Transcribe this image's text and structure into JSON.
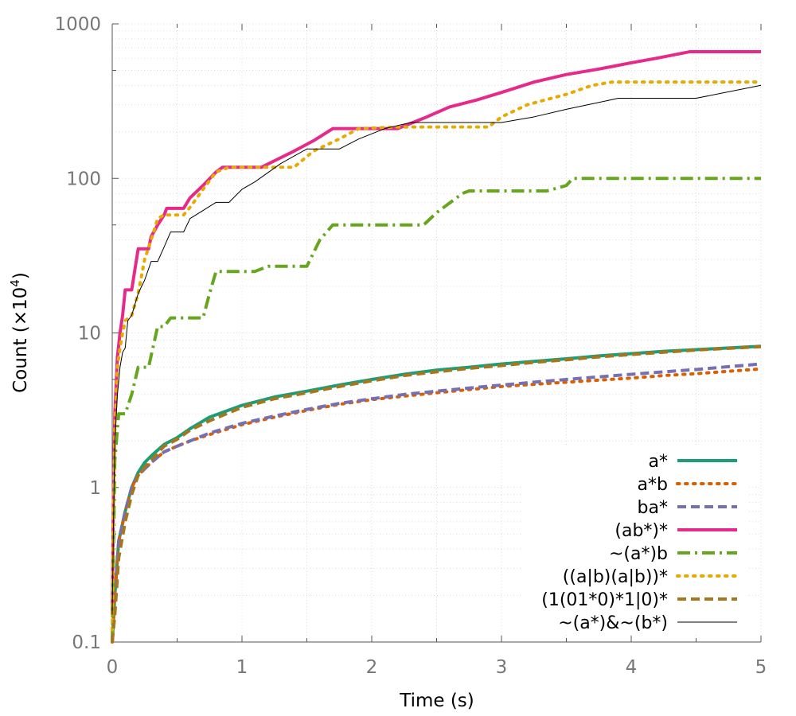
{
  "chart_data": {
    "type": "line",
    "xlabel": "Time (s)",
    "ylabel_main": "Count (×10",
    "ylabel_exp": "4",
    "ylabel_close": ")",
    "xlim": [
      0,
      5
    ],
    "ylim": [
      0.1,
      1000
    ],
    "yscale": "log",
    "grid": true,
    "legend_placement": "bottom-right",
    "x_ticks": [
      {
        "value": 0,
        "label": "0"
      },
      {
        "value": 1,
        "label": "1"
      },
      {
        "value": 2,
        "label": "2"
      },
      {
        "value": 3,
        "label": "3"
      },
      {
        "value": 4,
        "label": "4"
      },
      {
        "value": 5,
        "label": "5"
      }
    ],
    "y_ticks": [
      {
        "value": 0.1,
        "label": "0.1"
      },
      {
        "value": 1,
        "label": "1"
      },
      {
        "value": 10,
        "label": "10"
      },
      {
        "value": 100,
        "label": "100"
      },
      {
        "value": 1000,
        "label": "1000"
      }
    ],
    "series": [
      {
        "name": "a*",
        "color": "#1b9e77",
        "style": "solid",
        "width": 4,
        "points": [
          [
            0,
            0.1
          ],
          [
            0.02,
            0.2
          ],
          [
            0.05,
            0.45
          ],
          [
            0.1,
            0.7
          ],
          [
            0.15,
            1.0
          ],
          [
            0.2,
            1.25
          ],
          [
            0.25,
            1.45
          ],
          [
            0.3,
            1.6
          ],
          [
            0.4,
            1.9
          ],
          [
            0.5,
            2.1
          ],
          [
            0.6,
            2.4
          ],
          [
            0.75,
            2.85
          ],
          [
            1.0,
            3.4
          ],
          [
            1.25,
            3.85
          ],
          [
            1.5,
            4.2
          ],
          [
            1.75,
            4.6
          ],
          [
            2.0,
            5.0
          ],
          [
            2.25,
            5.4
          ],
          [
            2.5,
            5.75
          ],
          [
            2.75,
            6.0
          ],
          [
            3.0,
            6.3
          ],
          [
            3.25,
            6.55
          ],
          [
            3.5,
            6.8
          ],
          [
            3.75,
            7.1
          ],
          [
            4.0,
            7.35
          ],
          [
            4.25,
            7.6
          ],
          [
            4.5,
            7.8
          ],
          [
            4.75,
            8.0
          ],
          [
            5.0,
            8.2
          ]
        ]
      },
      {
        "name": "a*b",
        "color": "#d95f02",
        "style": "dotted",
        "width": 4,
        "points": [
          [
            0,
            0.1
          ],
          [
            0.02,
            0.2
          ],
          [
            0.05,
            0.45
          ],
          [
            0.1,
            0.7
          ],
          [
            0.15,
            1.0
          ],
          [
            0.2,
            1.2
          ],
          [
            0.3,
            1.45
          ],
          [
            0.4,
            1.7
          ],
          [
            0.5,
            1.85
          ],
          [
            0.6,
            2.0
          ],
          [
            0.75,
            2.2
          ],
          [
            1.0,
            2.55
          ],
          [
            1.25,
            2.85
          ],
          [
            1.5,
            3.15
          ],
          [
            1.75,
            3.45
          ],
          [
            2.0,
            3.7
          ],
          [
            2.25,
            3.9
          ],
          [
            2.5,
            4.1
          ],
          [
            2.75,
            4.3
          ],
          [
            3.0,
            4.5
          ],
          [
            3.25,
            4.65
          ],
          [
            3.5,
            4.8
          ],
          [
            3.75,
            4.95
          ],
          [
            4.0,
            5.1
          ],
          [
            4.25,
            5.3
          ],
          [
            4.5,
            5.45
          ],
          [
            4.75,
            5.65
          ],
          [
            5.0,
            5.85
          ]
        ]
      },
      {
        "name": "ba*",
        "color": "#7570b3",
        "style": "dashed",
        "width": 4,
        "points": [
          [
            0,
            0.1
          ],
          [
            0.02,
            0.2
          ],
          [
            0.05,
            0.45
          ],
          [
            0.1,
            0.7
          ],
          [
            0.15,
            1.0
          ],
          [
            0.2,
            1.2
          ],
          [
            0.3,
            1.45
          ],
          [
            0.4,
            1.7
          ],
          [
            0.5,
            1.85
          ],
          [
            0.6,
            2.0
          ],
          [
            0.75,
            2.25
          ],
          [
            1.0,
            2.6
          ],
          [
            1.25,
            2.9
          ],
          [
            1.5,
            3.2
          ],
          [
            1.75,
            3.5
          ],
          [
            2.0,
            3.75
          ],
          [
            2.25,
            4.0
          ],
          [
            2.5,
            4.2
          ],
          [
            2.75,
            4.4
          ],
          [
            3.0,
            4.6
          ],
          [
            3.25,
            4.8
          ],
          [
            3.5,
            5.0
          ],
          [
            3.75,
            5.2
          ],
          [
            4.0,
            5.4
          ],
          [
            4.25,
            5.6
          ],
          [
            4.5,
            5.8
          ],
          [
            4.75,
            6.05
          ],
          [
            5.0,
            6.3
          ]
        ]
      },
      {
        "name": "(ab*)*",
        "color": "#e7298a",
        "style": "solid",
        "width": 4,
        "points": [
          [
            0,
            0.15
          ],
          [
            0.01,
            1.0
          ],
          [
            0.02,
            3.0
          ],
          [
            0.04,
            7.0
          ],
          [
            0.06,
            10
          ],
          [
            0.08,
            13
          ],
          [
            0.1,
            19
          ],
          [
            0.15,
            19
          ],
          [
            0.2,
            35
          ],
          [
            0.28,
            35
          ],
          [
            0.3,
            42
          ],
          [
            0.35,
            50
          ],
          [
            0.4,
            58
          ],
          [
            0.42,
            64
          ],
          [
            0.55,
            64
          ],
          [
            0.6,
            75
          ],
          [
            0.7,
            90
          ],
          [
            0.8,
            110
          ],
          [
            0.85,
            118
          ],
          [
            1.0,
            118
          ],
          [
            1.15,
            118
          ],
          [
            1.25,
            130
          ],
          [
            1.4,
            150
          ],
          [
            1.55,
            175
          ],
          [
            1.7,
            210
          ],
          [
            2.0,
            210
          ],
          [
            2.2,
            210
          ],
          [
            2.4,
            245
          ],
          [
            2.6,
            290
          ],
          [
            2.8,
            320
          ],
          [
            3.0,
            360
          ],
          [
            3.25,
            420
          ],
          [
            3.5,
            470
          ],
          [
            3.75,
            510
          ],
          [
            4.0,
            560
          ],
          [
            4.2,
            600
          ],
          [
            4.45,
            660
          ],
          [
            5.0,
            660
          ]
        ]
      },
      {
        "name": "~(a*)b",
        "color": "#66a61e",
        "style": "dashdot",
        "width": 4,
        "points": [
          [
            0,
            0.1
          ],
          [
            0.02,
            1.5
          ],
          [
            0.05,
            3.0
          ],
          [
            0.1,
            3.0
          ],
          [
            0.15,
            4.0
          ],
          [
            0.2,
            6.0
          ],
          [
            0.28,
            6.0
          ],
          [
            0.35,
            11
          ],
          [
            0.4,
            11
          ],
          [
            0.45,
            12.5
          ],
          [
            0.7,
            12.5
          ],
          [
            0.75,
            18
          ],
          [
            0.8,
            25
          ],
          [
            1.1,
            25
          ],
          [
            1.2,
            27
          ],
          [
            1.5,
            27
          ],
          [
            1.6,
            40
          ],
          [
            1.7,
            50
          ],
          [
            2.4,
            50
          ],
          [
            2.5,
            60
          ],
          [
            2.7,
            80
          ],
          [
            2.75,
            83
          ],
          [
            3.35,
            83
          ],
          [
            3.5,
            90
          ],
          [
            3.55,
            100
          ],
          [
            5.0,
            100
          ]
        ]
      },
      {
        "name": "((a|b)(a|b))*",
        "color": "#e6ab02",
        "style": "dotted",
        "width": 4,
        "points": [
          [
            0,
            0.12
          ],
          [
            0.01,
            0.8
          ],
          [
            0.02,
            2.5
          ],
          [
            0.04,
            6
          ],
          [
            0.06,
            8
          ],
          [
            0.08,
            10
          ],
          [
            0.1,
            12
          ],
          [
            0.15,
            13
          ],
          [
            0.2,
            18
          ],
          [
            0.25,
            30
          ],
          [
            0.3,
            40
          ],
          [
            0.35,
            55
          ],
          [
            0.4,
            58
          ],
          [
            0.55,
            58
          ],
          [
            0.6,
            65
          ],
          [
            0.7,
            85
          ],
          [
            0.8,
            110
          ],
          [
            0.9,
            118
          ],
          [
            1.2,
            118
          ],
          [
            1.4,
            118
          ],
          [
            1.55,
            150
          ],
          [
            1.75,
            180
          ],
          [
            1.9,
            210
          ],
          [
            2.2,
            215
          ],
          [
            2.3,
            215
          ],
          [
            2.5,
            215
          ],
          [
            2.9,
            215
          ],
          [
            3.0,
            250
          ],
          [
            3.2,
            300
          ],
          [
            3.5,
            350
          ],
          [
            3.7,
            400
          ],
          [
            3.85,
            420
          ],
          [
            5.0,
            420
          ]
        ]
      },
      {
        "name": "(1(01*0)*1|0)*",
        "color": "#a6761d",
        "style": "dashed",
        "width": 4,
        "points": [
          [
            0,
            0.1
          ],
          [
            0.02,
            0.15
          ],
          [
            0.05,
            0.35
          ],
          [
            0.1,
            0.6
          ],
          [
            0.15,
            0.9
          ],
          [
            0.2,
            1.2
          ],
          [
            0.25,
            1.35
          ],
          [
            0.3,
            1.5
          ],
          [
            0.4,
            1.85
          ],
          [
            0.5,
            2.05
          ],
          [
            0.6,
            2.35
          ],
          [
            0.75,
            2.7
          ],
          [
            1.0,
            3.3
          ],
          [
            1.25,
            3.75
          ],
          [
            1.5,
            4.1
          ],
          [
            1.75,
            4.5
          ],
          [
            2.0,
            4.9
          ],
          [
            2.25,
            5.3
          ],
          [
            2.5,
            5.6
          ],
          [
            2.75,
            5.9
          ],
          [
            3.0,
            6.15
          ],
          [
            3.25,
            6.45
          ],
          [
            3.5,
            6.7
          ],
          [
            3.75,
            7.0
          ],
          [
            4.0,
            7.25
          ],
          [
            4.25,
            7.5
          ],
          [
            4.5,
            7.75
          ],
          [
            4.75,
            7.95
          ],
          [
            5.0,
            8.15
          ]
        ]
      },
      {
        "name": "~(a*)&~(b*)",
        "color": "#000000",
        "style": "solid",
        "width": 1,
        "points": [
          [
            0,
            0.15
          ],
          [
            0.01,
            0.6
          ],
          [
            0.02,
            2
          ],
          [
            0.04,
            4
          ],
          [
            0.06,
            6
          ],
          [
            0.08,
            7.5
          ],
          [
            0.1,
            8
          ],
          [
            0.12,
            12
          ],
          [
            0.15,
            13
          ],
          [
            0.2,
            18
          ],
          [
            0.25,
            22
          ],
          [
            0.3,
            29
          ],
          [
            0.35,
            29
          ],
          [
            0.4,
            36
          ],
          [
            0.45,
            45
          ],
          [
            0.55,
            45
          ],
          [
            0.6,
            55
          ],
          [
            0.7,
            62
          ],
          [
            0.8,
            70
          ],
          [
            0.9,
            70
          ],
          [
            1.0,
            85
          ],
          [
            1.1,
            95
          ],
          [
            1.3,
            125
          ],
          [
            1.5,
            155
          ],
          [
            1.75,
            155
          ],
          [
            1.9,
            180
          ],
          [
            2.1,
            210
          ],
          [
            2.3,
            230
          ],
          [
            2.7,
            230
          ],
          [
            3.0,
            230
          ],
          [
            3.25,
            250
          ],
          [
            3.5,
            280
          ],
          [
            3.75,
            310
          ],
          [
            3.9,
            330
          ],
          [
            4.5,
            330
          ],
          [
            5.0,
            400
          ]
        ]
      }
    ]
  }
}
